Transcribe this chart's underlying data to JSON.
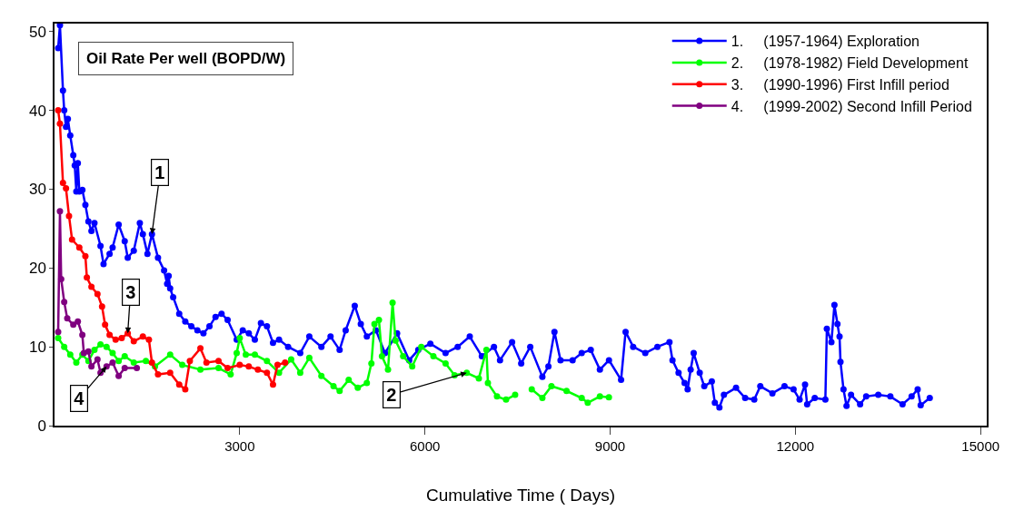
{
  "chart_data": {
    "type": "line",
    "title": "Oil Rate Per well (BOPD/W)",
    "xlabel": "Cumulative Time ( Days)",
    "xlim": [
      0,
      15100
    ],
    "xticks": [
      3000,
      6000,
      9000,
      12000,
      15000
    ],
    "ylim": [
      0,
      51
    ],
    "yticks": [
      0,
      10,
      20,
      30,
      40,
      50
    ],
    "legend": "top right",
    "marker": "circle",
    "line_style": "solid",
    "series": [
      {
        "name": "1.     (1957-1964) Exploration",
        "color": "#0000ff",
        "x": [
          59,
          88,
          137,
          157,
          186,
          216,
          255,
          304,
          328,
          353,
          378,
          402,
          451,
          500,
          549,
          598,
          647,
          745,
          794,
          892,
          941,
          1039,
          1137,
          1186,
          1284,
          1382,
          1431,
          1505,
          1578,
          1676,
          1775,
          1824,
          1849,
          1873,
          1922,
          2020,
          2118,
          2216,
          2314,
          2412,
          2510,
          2608,
          2706,
          2804,
          2951,
          3049,
          3147,
          3245,
          3343,
          3441,
          3539,
          3637,
          3784,
          3980,
          4127,
          4323,
          4471,
          4618,
          4716,
          4863,
          4961,
          5059,
          5206,
          5353,
          5549,
          5745,
          5892,
          6088,
          6334,
          6530,
          6726,
          6922,
          7118,
          7216,
          7412,
          7559,
          7706,
          7902,
          8000,
          8098,
          8196,
          8392,
          8539,
          8686,
          8834,
          8981,
          9177,
          9250,
          9373,
          9569,
          9765,
          9961,
          10010,
          10108,
          10206,
          10255,
          10304,
          10353,
          10451,
          10525,
          10647,
          10696,
          10770,
          10843,
          11039,
          11187,
          11334,
          11432,
          11628,
          11824,
          11971,
          12069,
          12157,
          12191,
          12314,
          12486,
          12510,
          12584,
          12633,
          12682,
          12716,
          12731,
          12780,
          12829,
          12902,
          13049,
          13147,
          13343,
          13539,
          13736,
          13883,
          13981,
          14030,
          14177
        ],
        "values": [
          47.9,
          50.8,
          42.5,
          40,
          37.9,
          38.9,
          36.8,
          34.3,
          33,
          29.7,
          33.3,
          29.7,
          29.9,
          28,
          25.9,
          24.7,
          25.7,
          22.8,
          20.5,
          21.8,
          22.6,
          25.5,
          23.4,
          21.3,
          22.2,
          25.7,
          24.3,
          21.8,
          24.3,
          21.3,
          19.7,
          18,
          19,
          17.4,
          16.3,
          14.2,
          13.2,
          12.6,
          12.1,
          11.7,
          12.6,
          13.8,
          14.2,
          13.4,
          10.9,
          12.1,
          11.7,
          10.9,
          13,
          12.6,
          10.5,
          10.9,
          10,
          9.2,
          11.3,
          10,
          11.3,
          9.6,
          12.1,
          15.2,
          12.9,
          11.3,
          12.1,
          9.2,
          11.7,
          8.3,
          9.6,
          10.4,
          9.2,
          10,
          11.3,
          8.8,
          10,
          8.3,
          10.6,
          7.9,
          10,
          6.2,
          7.5,
          11.9,
          8.3,
          8.3,
          9.2,
          9.6,
          7.1,
          8.3,
          5.8,
          11.9,
          10,
          9.2,
          10,
          10.6,
          8.3,
          6.7,
          5.4,
          4.6,
          7.1,
          9.2,
          6.7,
          5,
          5.6,
          2.9,
          2.3,
          3.9,
          4.8,
          3.5,
          3.3,
          5,
          4.1,
          5,
          4.6,
          3.3,
          5.2,
          2.7,
          3.5,
          3.3,
          12.3,
          10.6,
          15.3,
          12.9,
          11.3,
          8.1,
          4.6,
          2.5,
          3.9,
          2.7,
          3.7,
          3.9,
          3.7,
          2.7,
          3.7,
          4.6,
          2.6,
          3.5
        ]
      },
      {
        "name": "2.     (1978-1982) Field Development",
        "color": "#00ff00",
        "x": [
          59,
          157,
          255,
          353,
          451,
          549,
          647,
          745,
          843,
          941,
          1039,
          1137,
          1284,
          1480,
          1627,
          1873,
          2069,
          2363,
          2657,
          2853,
          2951,
          3000,
          3098,
          3245,
          3441,
          3637,
          3833,
          3980,
          4127,
          4323,
          4519,
          4618,
          4765,
          4912,
          5059,
          5133,
          5182,
          5255,
          5304,
          5402,
          5476,
          5524,
          5647,
          5794,
          5941,
          6137,
          6334,
          6480,
          6677,
          6873,
          6996,
          7020,
          7167,
          7314,
          7461,
          7600,
          7730,
          7902,
          8049,
          8294,
          8539,
          8637,
          8834,
          8980
        ],
        "values": [
          11.1,
          10,
          9,
          8,
          9,
          8.2,
          9.6,
          10.3,
          10,
          9.2,
          8.2,
          8.8,
          8,
          8.2,
          7.5,
          9,
          7.7,
          7.1,
          7.3,
          6.5,
          9.2,
          11.1,
          9,
          9,
          8.2,
          6.7,
          8.4,
          6.7,
          8.6,
          6.3,
          5,
          4.4,
          5.8,
          4.8,
          5.4,
          7.9,
          12.9,
          13.4,
          8.8,
          7.1,
          15.6,
          10.8,
          8.8,
          7.5,
          10,
          8.8,
          7.9,
          6.4,
          6.7,
          6,
          9.6,
          5.4,
          3.7,
          3.3,
          3.9,
          null,
          4.6,
          3.5,
          5,
          4.4,
          3.5,
          2.9,
          3.7,
          3.6
        ]
      },
      {
        "name": "3.     (1990-1996) First Infill period",
        "color": "#ff0000",
        "x": [
          59,
          88,
          137,
          186,
          235,
          284,
          402,
          500,
          524,
          598,
          696,
          770,
          819,
          892,
          990,
          1088,
          1186,
          1284,
          1431,
          1529,
          1578,
          1676,
          1873,
          2020,
          2118,
          2192,
          2363,
          2461,
          2657,
          2804,
          3000,
          3147,
          3294,
          3441,
          3539,
          3612,
          3735
        ],
        "values": [
          40,
          38.3,
          30.8,
          30.1,
          26.6,
          23.6,
          22.6,
          21.5,
          18.8,
          17.6,
          16.7,
          15.1,
          12.8,
          11.5,
          10.9,
          11.1,
          11.7,
          10.7,
          11.3,
          10.9,
          8,
          6.5,
          6.7,
          5.2,
          4.6,
          8.2,
          9.8,
          8,
          8.2,
          7.3,
          7.7,
          7.5,
          7.1,
          6.7,
          5.2,
          7.7,
          8
        ]
      },
      {
        "name": "4.     (1999-2002) Second Infill Period",
        "color": "#800080",
        "x": [
          59,
          88,
          108,
          157,
          206,
          304,
          378,
          451,
          475,
          549,
          598,
          696,
          745,
          843,
          941,
          1039,
          1137,
          1333
        ],
        "values": [
          11.9,
          27.2,
          18.6,
          15.7,
          13.6,
          12.8,
          13.2,
          11.5,
          9.2,
          9.4,
          7.5,
          8.4,
          6.7,
          7.5,
          8,
          6.3,
          7.3,
          7.3
        ]
      }
    ],
    "annotations": [
      {
        "text": "1",
        "x": 1578,
        "y": 24.3
      },
      {
        "text": "2",
        "x": 6677,
        "y": 6.7
      },
      {
        "text": "3",
        "x": 1186,
        "y": 11.7
      },
      {
        "text": "4",
        "x": 843,
        "y": 7.5
      }
    ]
  }
}
